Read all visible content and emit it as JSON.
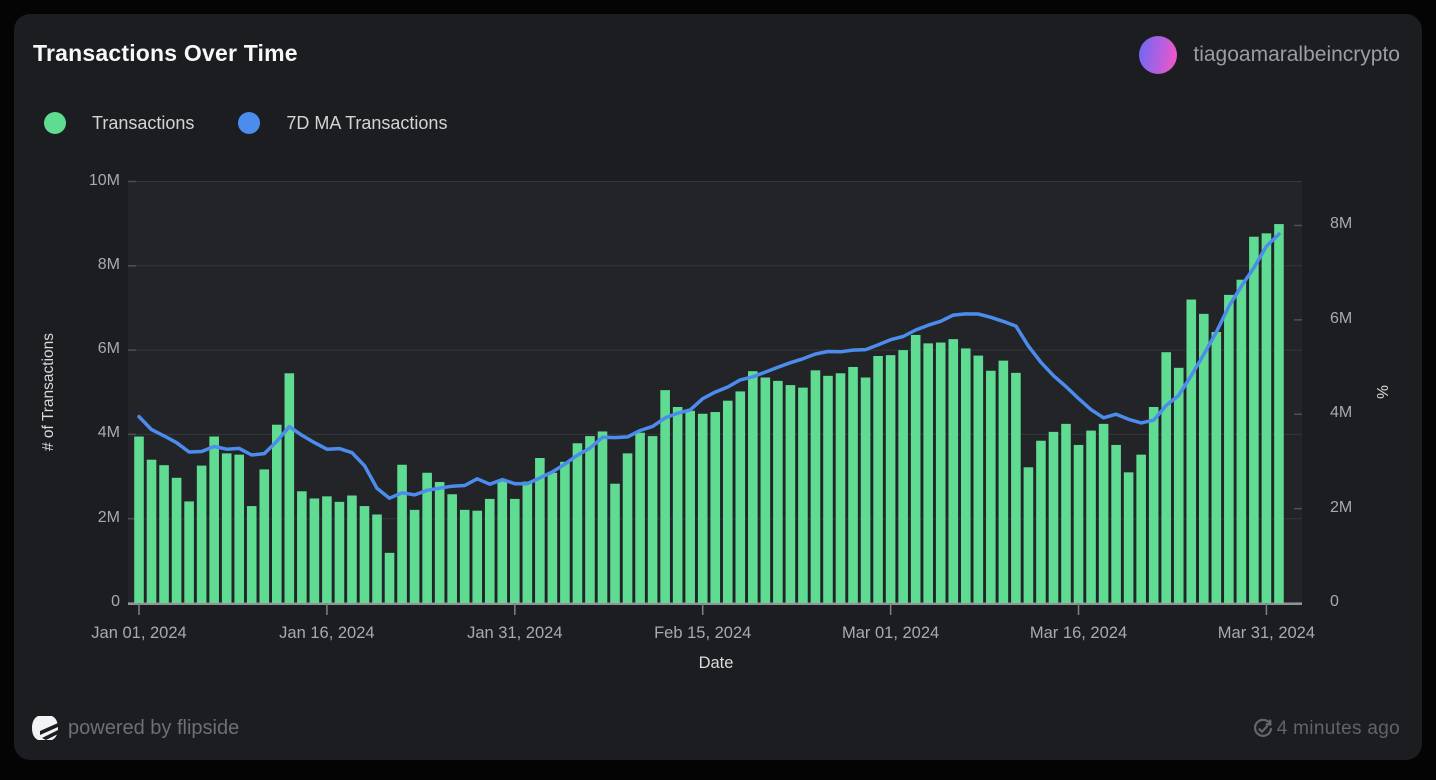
{
  "header": {
    "title": "Transactions Over Time",
    "username": "tiagoamaralbeincrypto"
  },
  "legend": [
    {
      "label": "Transactions",
      "color": "#5fdb92"
    },
    {
      "label": "7D MA Transactions",
      "color": "#4b8cec"
    }
  ],
  "chart_data": {
    "type": "bar+line",
    "title": "Transactions Over Time",
    "start_date": "Jan 01, 2024",
    "frequency": "daily",
    "legend_position": "top-left",
    "grid": "horizontal",
    "x_axis": {
      "title": "Date",
      "tick_labels": [
        "Jan 01, 2024",
        "Jan 16, 2024",
        "Jan 31, 2024",
        "Feb 15, 2024",
        "Mar 01, 2024",
        "Mar 16, 2024",
        "Mar 31, 2024"
      ],
      "tick_indices": [
        0,
        15,
        30,
        45,
        60,
        75,
        90
      ]
    },
    "y_axis_left": {
      "title": "# of Transactions",
      "tick_labels": [
        "0",
        "2M",
        "4M",
        "6M",
        "8M",
        "10M"
      ],
      "tick_values_millions": [
        0,
        2,
        4,
        6,
        8,
        10
      ],
      "range_millions": [
        0,
        10
      ]
    },
    "y_axis_right": {
      "title": "%",
      "tick_labels": [
        "0",
        "2M",
        "4M",
        "6M",
        "8M"
      ],
      "tick_values_millions": [
        0,
        2,
        4,
        6,
        8
      ],
      "range_millions": [
        0,
        8.9
      ]
    },
    "series": [
      {
        "name": "Transactions",
        "type": "bar",
        "axis": "left",
        "color": "#5fdb92",
        "unit": "millions",
        "values": [
          3.95,
          3.4,
          3.27,
          2.97,
          2.41,
          3.26,
          3.95,
          3.55,
          3.52,
          2.3,
          3.17,
          4.23,
          5.45,
          2.65,
          2.48,
          2.53,
          2.4,
          2.55,
          2.3,
          2.1,
          1.19,
          3.28,
          2.21,
          3.09,
          2.87,
          2.58,
          2.21,
          2.19,
          2.47,
          2.9,
          2.47,
          2.88,
          3.44,
          3.09,
          3.35,
          3.79,
          3.96,
          4.07,
          2.83,
          3.55,
          4.04,
          3.96,
          5.05,
          4.65,
          4.56,
          4.49,
          4.53,
          4.8,
          5.02,
          5.5,
          5.35,
          5.27,
          5.17,
          5.11,
          5.52,
          5.39,
          5.45,
          5.6,
          5.35,
          5.86,
          5.88,
          6.0,
          6.36,
          6.16,
          6.18,
          6.26,
          6.04,
          5.87,
          5.51,
          5.75,
          5.46,
          3.22,
          3.85,
          4.06,
          4.25,
          3.75,
          4.09,
          4.25,
          3.75,
          3.1,
          3.52,
          4.65,
          5.95,
          5.58,
          7.2,
          6.86,
          6.43,
          7.31,
          7.67,
          8.69,
          8.77,
          8.99
        ]
      },
      {
        "name": "7D MA Transactions",
        "type": "line",
        "axis": "right",
        "color": "#4b8cec",
        "unit": "millions",
        "derivation": "7-day trailing moving average of Transactions"
      }
    ]
  },
  "footer": {
    "powered_by": "powered by flipside",
    "updated": "4 minutes ago",
    "flipside_logo": "flipside-logo",
    "updated_icon": "refresh-check-icon"
  }
}
